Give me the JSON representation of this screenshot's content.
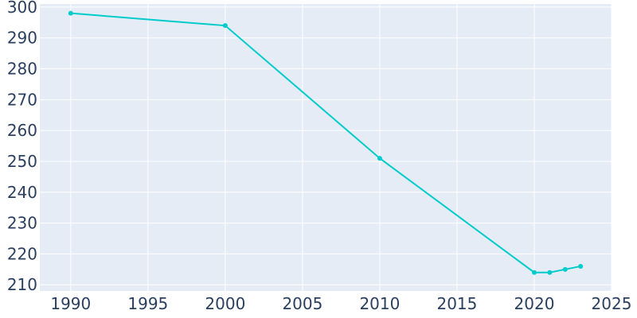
{
  "chart_data": {
    "type": "line",
    "title": "",
    "xlabel": "",
    "ylabel": "",
    "x": [
      1990,
      2000,
      2010,
      2020,
      2021,
      2022,
      2023
    ],
    "series": [
      {
        "values": [
          298,
          294,
          251,
          214,
          214,
          215,
          216
        ]
      }
    ],
    "xlim": [
      1988,
      2025
    ],
    "ylim": [
      208,
      301
    ],
    "xticks": [
      1990,
      1995,
      2000,
      2005,
      2010,
      2015,
      2020,
      2025
    ],
    "yticks": [
      210,
      220,
      230,
      240,
      250,
      260,
      270,
      280,
      290,
      300
    ],
    "grid": true,
    "legend": "none",
    "colors": {
      "line": "#00cccc",
      "plot_background": "#e5ecf6",
      "grid": "#ffffff",
      "text": "#2a3f5f"
    }
  }
}
